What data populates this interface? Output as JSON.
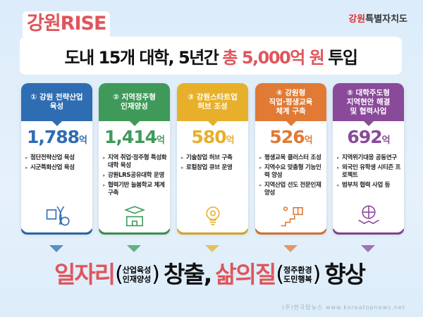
{
  "brand": "강원RISE",
  "logo": {
    "first": "강원",
    "rest": "특별자치도"
  },
  "headline": {
    "pre": "도내 15개 대학, 5년간",
    "highlight": "총 5,000억 원",
    "post": "투입"
  },
  "cards": [
    {
      "title": "① 강원 전략산업\n육성",
      "amount": "1,788",
      "unit": "억",
      "color": "#2f6db3",
      "icon": "dna-chip-icon",
      "items": [
        "첨단전략산업 육성",
        "시군특화산업 육성"
      ]
    },
    {
      "title": "② 지역정주형\n인재양성",
      "amount": "1,414",
      "unit": "억",
      "color": "#3f9a5a",
      "icon": "graduation-school-icon",
      "items": [
        "지역 취업·정주형 특성화 대학 육성",
        "강원LRS공유대학 운영",
        "협력기반 늘봄학교 체계 구축"
      ]
    },
    {
      "title": "③ 강원스타트업\n허브 조성",
      "amount": "580",
      "unit": "억",
      "color": "#e8b02a",
      "icon": "lightbulb-gear-icon",
      "items": [
        "기술창업 허브 구축",
        "로컬창업 큐브 운영"
      ]
    },
    {
      "title": "④ 강원형\n직업·평생교육\n체계 구축",
      "amount": "526",
      "unit": "억",
      "color": "#e07a35",
      "icon": "stairs-book-icon",
      "items": [
        "평생교육 클러스터 조성",
        "지역수요 맞춤형 기능인력 양성",
        "지역산업 선도 전문인재 양성"
      ]
    },
    {
      "title": "⑤ 대학주도형\n지역현안 해결\n및 협력사업",
      "amount": "692",
      "unit": "억",
      "color": "#8a4a9a",
      "icon": "globe-handshake-icon",
      "items": [
        "지역위기대응 공동연구",
        "외국인 유학생 시티즌 프로젝트",
        "범부처 협력 사업 등"
      ]
    }
  ],
  "bottom": {
    "w1": "일자리",
    "sub1a": "산업육성",
    "sub1b": "인재양성",
    "w2": "창출,",
    "w3": "삶의질",
    "sub2a": "정주환경",
    "sub2b": "도민행복",
    "w4": "향상"
  },
  "watermark": "(주)한국탑뉴스 www.koreatopnews.net"
}
